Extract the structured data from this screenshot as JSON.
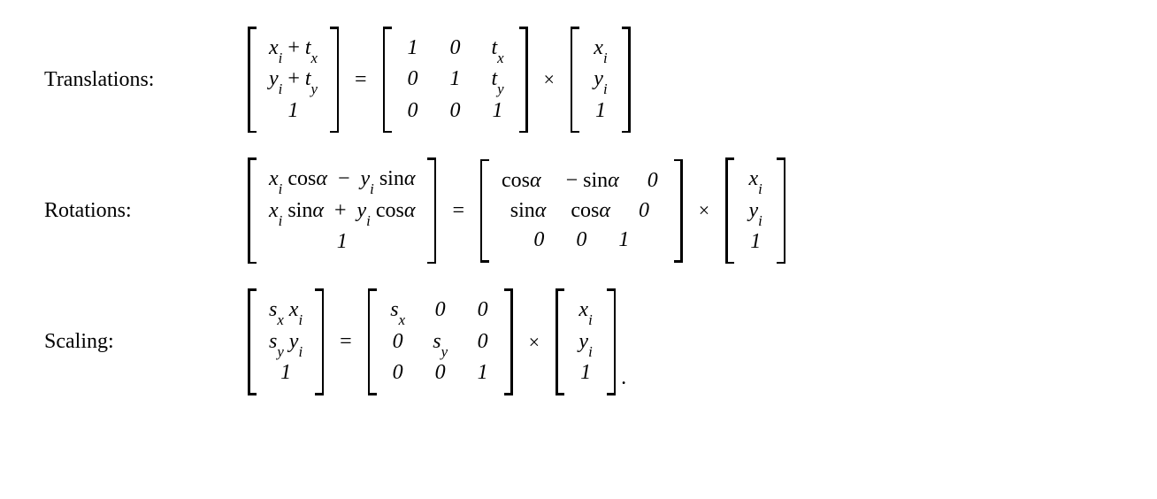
{
  "labels": {
    "translations": "Translations:",
    "rotations": "Rotations:",
    "scaling": "Scaling:"
  },
  "ops": {
    "equals": "=",
    "times": "×",
    "plus": "+",
    "minus": "−"
  },
  "translations": {
    "lhs": [
      [
        "x_i",
        "+",
        "t_x"
      ],
      [
        "y_i",
        "+",
        "t_y"
      ],
      [
        "",
        "1",
        ""
      ]
    ],
    "m": [
      [
        "1",
        "0",
        "t_x"
      ],
      [
        "0",
        "1",
        "t_y"
      ],
      [
        "0",
        "0",
        "1"
      ]
    ],
    "v": [
      "x_i",
      "y_i",
      "1"
    ]
  },
  "rotations": {
    "lhs": [
      [
        "x_i cosα",
        "−",
        "y_i sinα"
      ],
      [
        "x_i sinα",
        "+",
        "y_i cosα"
      ],
      [
        "",
        "1",
        ""
      ]
    ],
    "m": [
      [
        "cosα",
        "− sinα",
        "0"
      ],
      [
        "sinα",
        "cosα",
        "0"
      ],
      [
        "0",
        "0",
        "1"
      ]
    ],
    "v": [
      "x_i",
      "y_i",
      "1"
    ]
  },
  "scaling": {
    "lhs": [
      "s_x x_i",
      "s_y y_i",
      "1"
    ],
    "m": [
      [
        "s_x",
        "0",
        "0"
      ],
      [
        "0",
        "s_y",
        "0"
      ],
      [
        "0",
        "0",
        "1"
      ]
    ],
    "v": [
      "x_i",
      "y_i",
      "1"
    ]
  },
  "trailing_period": "."
}
